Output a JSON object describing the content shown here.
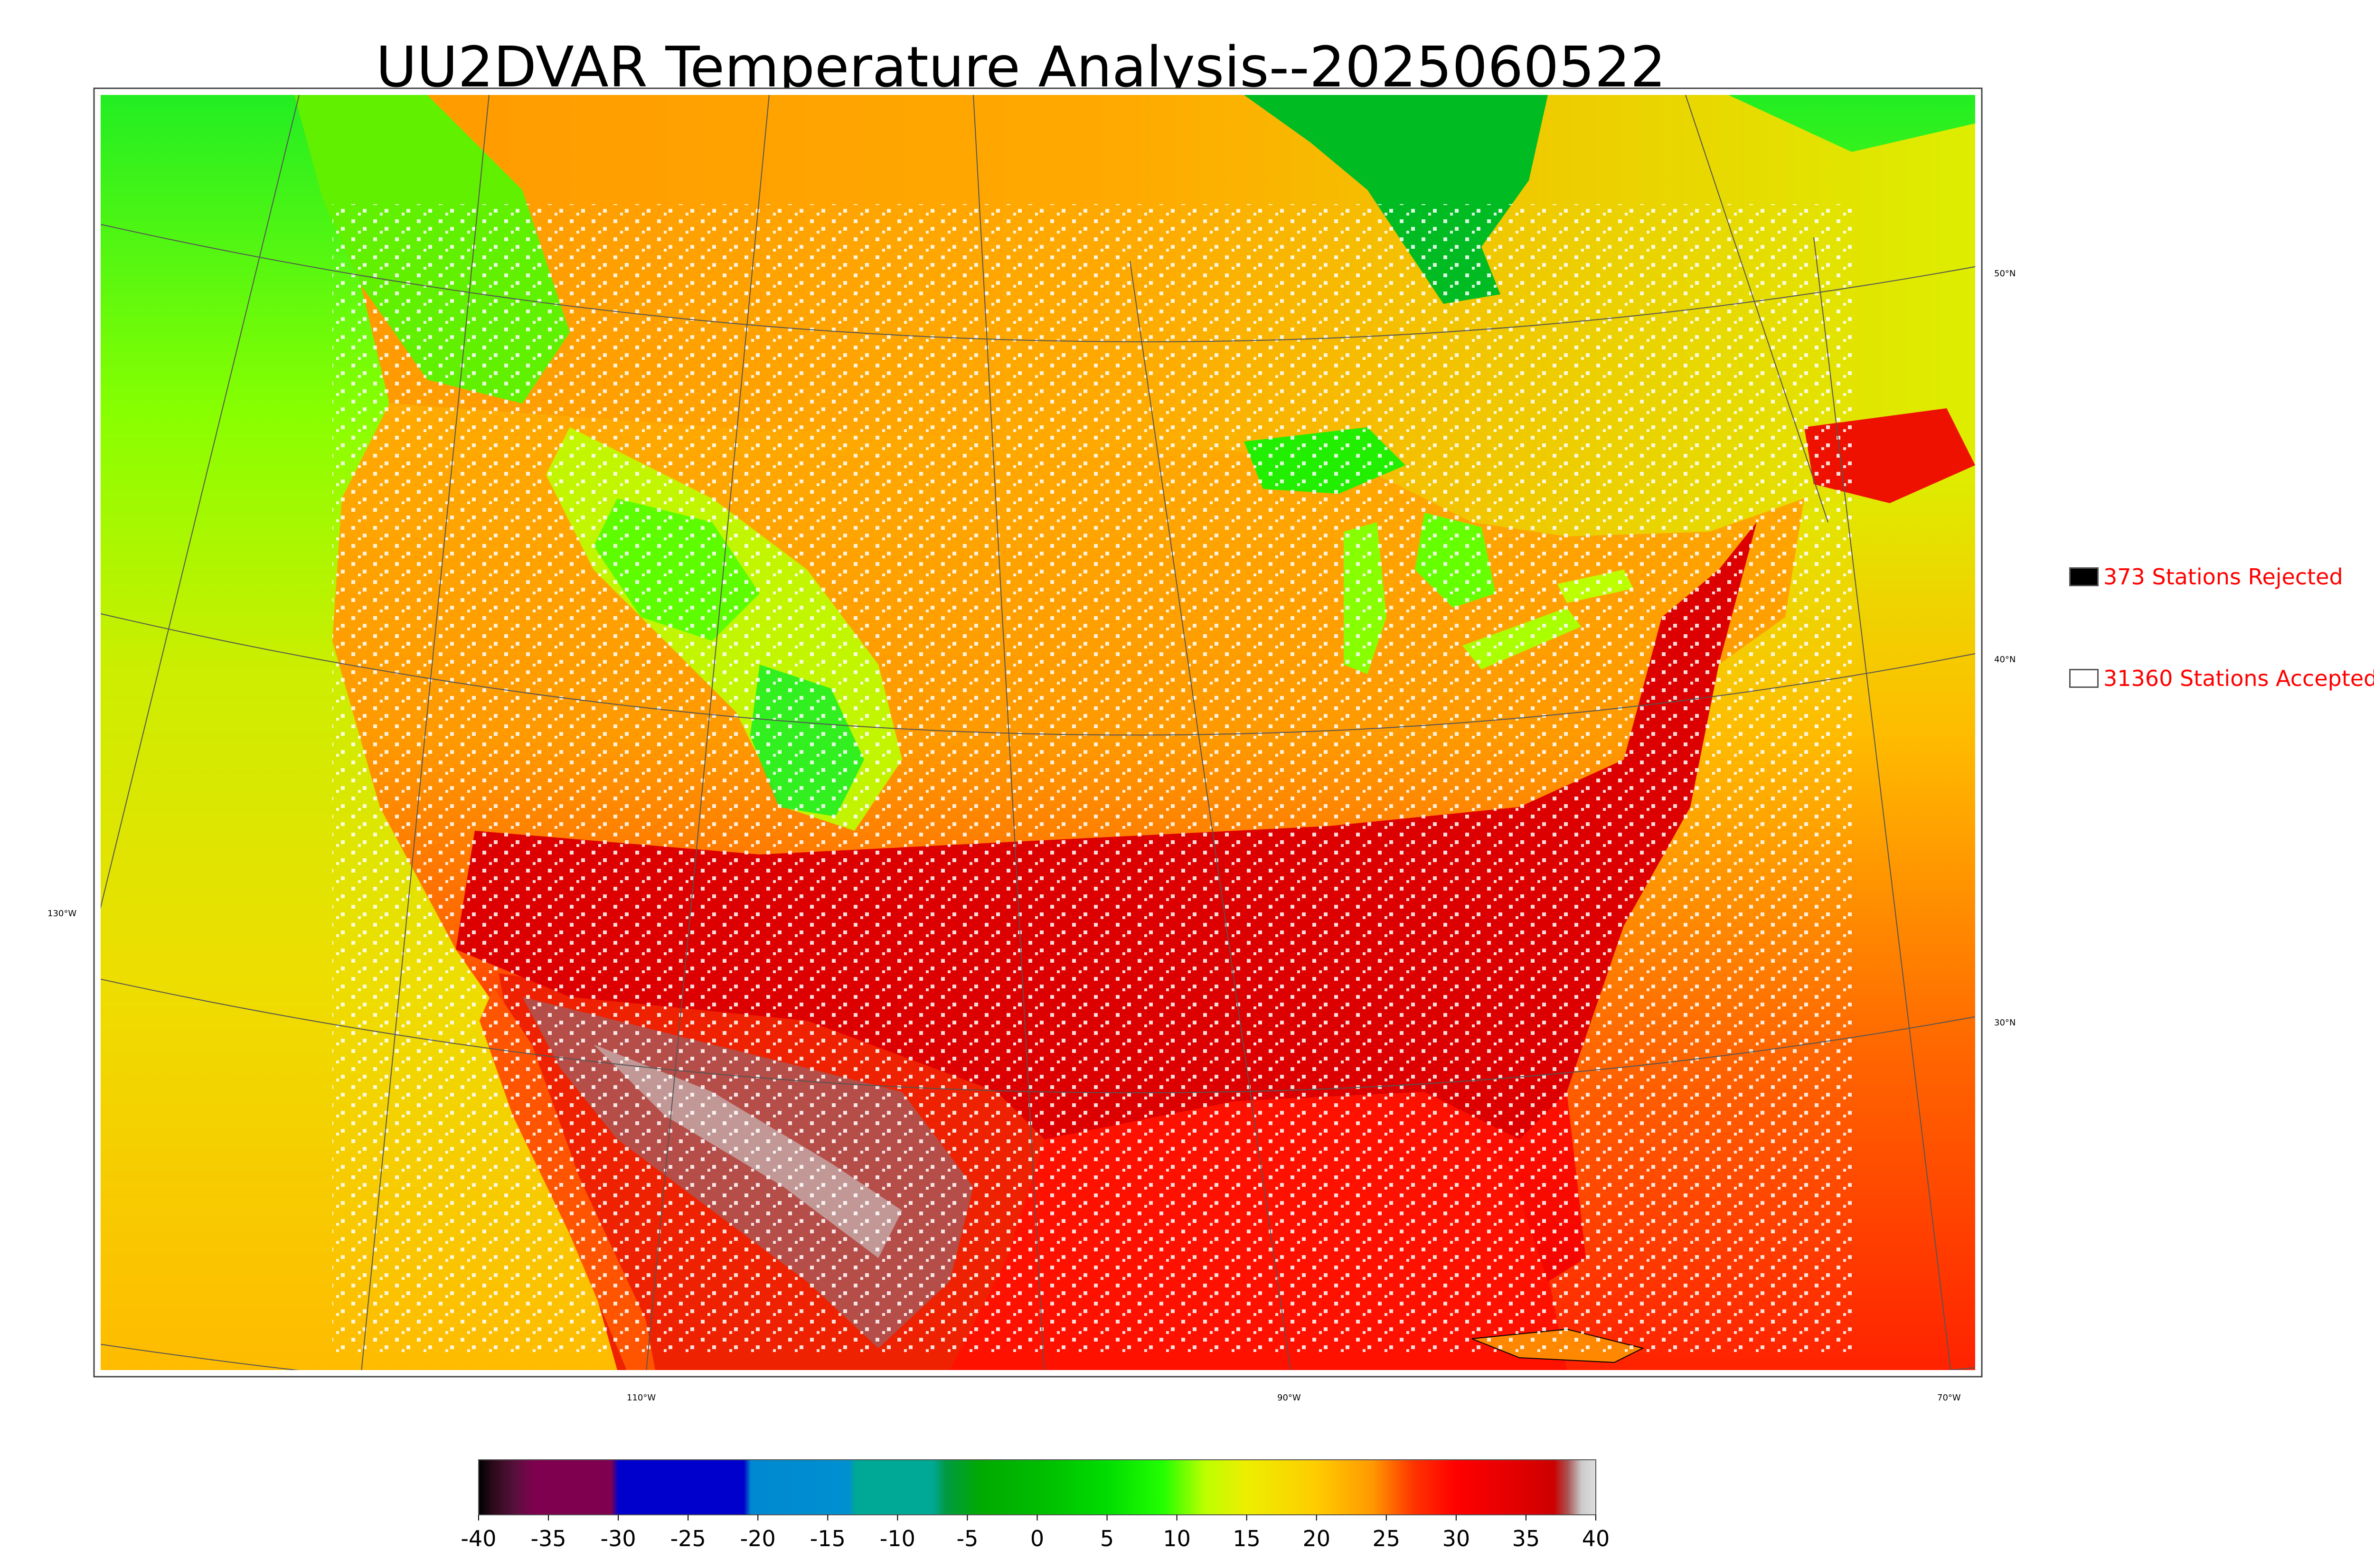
{
  "title": "UU2DVAR Temperature Analysis--2025060522",
  "legend": {
    "rejected": {
      "label": "373 Stations Rejected",
      "color": "#000000"
    },
    "accepted": {
      "label": "31360 Stations Accepted",
      "color": "#ffffff"
    }
  },
  "graticule_labels": {
    "lon": [
      "130°W",
      "110°W",
      "90°W",
      "70°W"
    ],
    "lat": [
      "50°N",
      "40°N",
      "30°N"
    ]
  },
  "colorbar": {
    "ticks": [
      "-40",
      "-35",
      "-30",
      "-25",
      "-20",
      "-15",
      "-10",
      "-5",
      "0",
      "5",
      "10",
      "15",
      "20",
      "25",
      "30",
      "35",
      "40"
    ],
    "range": [
      -40,
      40
    ],
    "stops": [
      {
        "v": -40,
        "c": "#000000"
      },
      {
        "v": -39,
        "c": "#2a0a1a"
      },
      {
        "v": -37.5,
        "c": "#55103a"
      },
      {
        "v": -36,
        "c": "#800050"
      },
      {
        "v": -30.5,
        "c": "#800050"
      },
      {
        "v": -30,
        "c": "#0000cc"
      },
      {
        "v": -21,
        "c": "#0000cc"
      },
      {
        "v": -20.5,
        "c": "#0088d0"
      },
      {
        "v": -13.5,
        "c": "#0090d0"
      },
      {
        "v": -13,
        "c": "#00a896"
      },
      {
        "v": -7.5,
        "c": "#00a896"
      },
      {
        "v": -6.5,
        "c": "#009a40"
      },
      {
        "v": -4,
        "c": "#00aa00"
      },
      {
        "v": 0,
        "c": "#00bb00"
      },
      {
        "v": 5,
        "c": "#00dd00"
      },
      {
        "v": 9,
        "c": "#22ff00"
      },
      {
        "v": 12,
        "c": "#bbff00"
      },
      {
        "v": 15,
        "c": "#eeee00"
      },
      {
        "v": 20,
        "c": "#ffcc00"
      },
      {
        "v": 24,
        "c": "#ff9900"
      },
      {
        "v": 27,
        "c": "#ff3300"
      },
      {
        "v": 30,
        "c": "#ff0000"
      },
      {
        "v": 35,
        "c": "#dd0000"
      },
      {
        "v": 37,
        "c": "#cc0000"
      },
      {
        "v": 38,
        "c": "#aa5555"
      },
      {
        "v": 39,
        "c": "#cccccc"
      },
      {
        "v": 40,
        "c": "#dddddd"
      }
    ]
  }
}
